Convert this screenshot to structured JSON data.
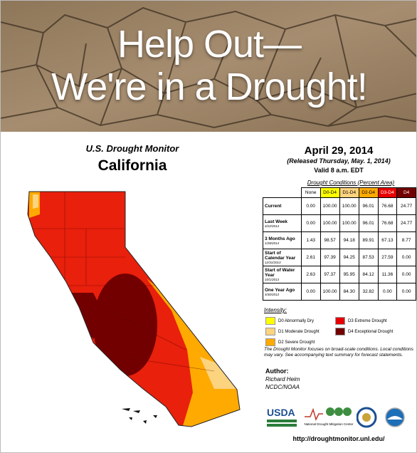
{
  "banner": {
    "line1": "Help Out—",
    "line2": "We're in a Drought!"
  },
  "map": {
    "title": "U.S. Drought Monitor",
    "region": "California"
  },
  "report": {
    "date": "April 29, 2014",
    "released": "(Released Thursday, May. 1, 2014)",
    "valid": "Valid 8 a.m. EDT"
  },
  "table": {
    "caption": "Drought Conditions (Percent Area)",
    "columns": [
      {
        "label": "None",
        "color": "#ffffff",
        "text": "#000000"
      },
      {
        "label": "D0-D4",
        "color": "#ffff00",
        "text": "#000000"
      },
      {
        "label": "D1-D4",
        "color": "#fcd37f",
        "text": "#000000"
      },
      {
        "label": "D2-D4",
        "color": "#ffaa00",
        "text": "#000000"
      },
      {
        "label": "D3-D4",
        "color": "#e60000",
        "text": "#ffffff"
      },
      {
        "label": "D4",
        "color": "#730000",
        "text": "#ffffff"
      }
    ],
    "rows": [
      {
        "label": "Current",
        "values": [
          "0.00",
          "100.00",
          "100.00",
          "96.01",
          "76.68",
          "24.77"
        ]
      },
      {
        "label": "Last Week",
        "date": "4/22/2014",
        "values": [
          "0.00",
          "100.00",
          "100.00",
          "96.01",
          "76.68",
          "24.77"
        ]
      },
      {
        "label": "3 Months Ago",
        "date": "1/28/2014",
        "values": [
          "1.43",
          "98.57",
          "94.18",
          "89.91",
          "67.13",
          "8.77"
        ]
      },
      {
        "label": "Start of Calendar Year",
        "date": "12/31/2013",
        "values": [
          "2.61",
          "97.39",
          "94.25",
          "87.53",
          "27.59",
          "0.00"
        ]
      },
      {
        "label": "Start of Water Year",
        "date": "10/1/2013",
        "values": [
          "2.63",
          "97.37",
          "95.95",
          "84.12",
          "11.36",
          "0.00"
        ]
      },
      {
        "label": "One Year Ago",
        "date": "4/30/2013",
        "values": [
          "0.00",
          "100.00",
          "84.30",
          "32.82",
          "0.00",
          "0.00"
        ]
      }
    ]
  },
  "legend": {
    "title": "Intensity:",
    "items": [
      {
        "label": "D0 Abnormally Dry",
        "color": "#ffff00"
      },
      {
        "label": "D1 Moderate Drought",
        "color": "#fcd37f"
      },
      {
        "label": "D2 Severe Drought",
        "color": "#ffaa00"
      },
      {
        "label": "D3 Extreme Drought",
        "color": "#e60000"
      },
      {
        "label": "D4 Exceptional Drought",
        "color": "#730000"
      }
    ]
  },
  "note": "The Drought Monitor focuses on broad-scale conditions. Local conditions may vary. See accompanying text summary for forecast statements.",
  "author": {
    "label": "Author:",
    "name": "Richard Heim",
    "org": "NCDC/NOAA"
  },
  "logos": {
    "usda": "USDA",
    "ndmc": "National Drought Mitigation Center"
  },
  "url": "http://droughtmonitor.unl.edu/"
}
